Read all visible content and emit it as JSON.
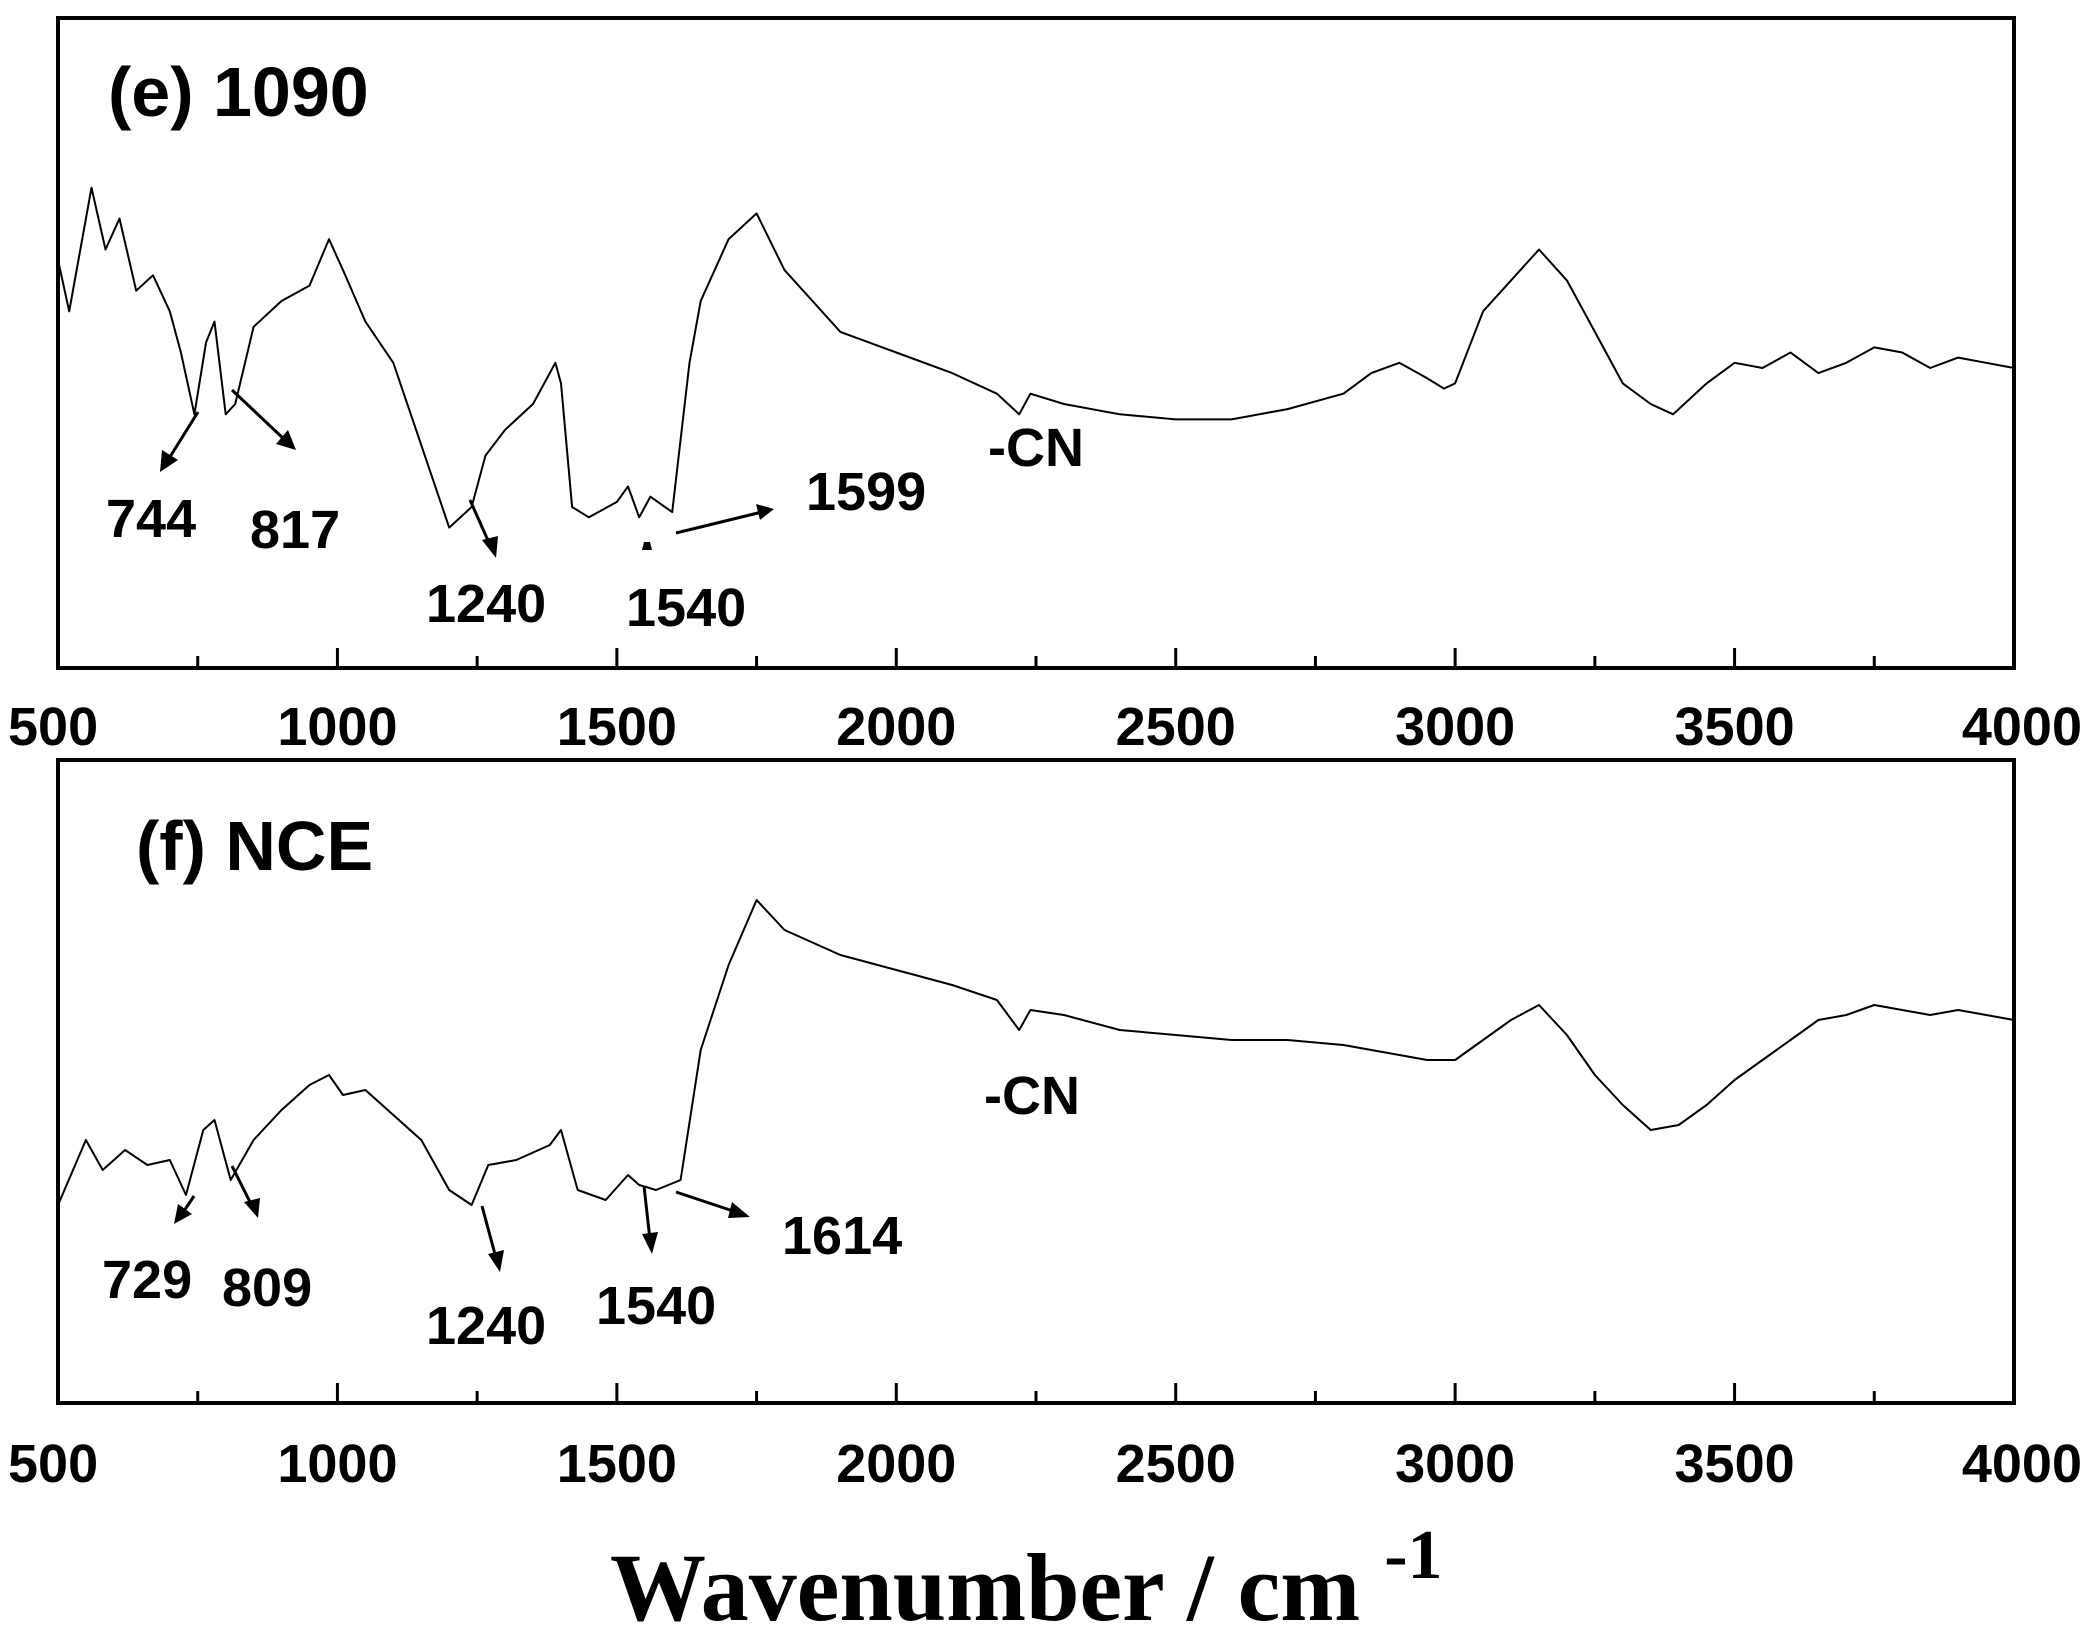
{
  "chart_data": [
    {
      "type": "line",
      "title": "(e) 1090",
      "xlabel": "Wavenumber / cm-1",
      "ylabel": "",
      "xlim": [
        500,
        4000
      ],
      "ylim": [
        0,
        100
      ],
      "xticks": [
        500,
        1000,
        1500,
        2000,
        2500,
        3000,
        3500,
        4000
      ],
      "x": [
        500,
        520,
        560,
        585,
        610,
        640,
        670,
        700,
        720,
        744,
        765,
        780,
        800,
        817,
        850,
        900,
        950,
        985,
        1010,
        1050,
        1100,
        1150,
        1200,
        1240,
        1265,
        1300,
        1350,
        1390,
        1400,
        1420,
        1450,
        1500,
        1520,
        1540,
        1560,
        1599,
        1630,
        1650,
        1700,
        1750,
        1800,
        1850,
        1900,
        2000,
        2100,
        2180,
        2220,
        2240,
        2300,
        2400,
        2500,
        2600,
        2700,
        2800,
        2850,
        2900,
        2950,
        2980,
        3000,
        3050,
        3100,
        3150,
        3200,
        3250,
        3300,
        3350,
        3390,
        3450,
        3500,
        3550,
        3600,
        3650,
        3700,
        3750,
        3800,
        3850,
        3900,
        3950,
        4000
      ],
      "y": [
        68,
        58,
        82,
        70,
        76,
        62,
        65,
        58,
        50,
        38,
        52,
        56,
        38,
        40,
        55,
        60,
        63,
        72,
        66,
        56,
        48,
        32,
        16,
        20,
        30,
        35,
        40,
        48,
        44,
        20,
        18,
        21,
        24,
        18,
        22,
        19,
        48,
        60,
        72,
        77,
        66,
        60,
        54,
        50,
        46,
        42,
        38,
        42,
        40,
        38,
        37,
        37,
        39,
        42,
        46,
        48,
        45,
        43,
        44,
        58,
        64,
        70,
        64,
        54,
        44,
        40,
        38,
        44,
        48,
        47,
        50,
        46,
        48,
        51,
        50,
        47,
        49,
        48,
        47
      ],
      "annotations": [
        {
          "label": "744",
          "x": 744
        },
        {
          "label": "817",
          "x": 817
        },
        {
          "label": "1240",
          "x": 1240
        },
        {
          "label": "1540",
          "x": 1540
        },
        {
          "label": "1599",
          "x": 1599
        },
        {
          "label": "-CN",
          "x": 2220
        }
      ]
    },
    {
      "type": "line",
      "title": "(f) NCE",
      "xlabel": "Wavenumber / cm-1",
      "ylabel": "",
      "xlim": [
        500,
        4000
      ],
      "ylim": [
        0,
        100
      ],
      "xticks": [
        500,
        1000,
        1500,
        2000,
        2500,
        3000,
        3500,
        4000
      ],
      "x": [
        500,
        550,
        580,
        620,
        660,
        700,
        729,
        760,
        780,
        809,
        850,
        900,
        950,
        985,
        1010,
        1050,
        1100,
        1150,
        1200,
        1240,
        1270,
        1320,
        1380,
        1400,
        1430,
        1480,
        1520,
        1540,
        1570,
        1614,
        1650,
        1700,
        1750,
        1800,
        1900,
        2000,
        2100,
        2180,
        2220,
        2240,
        2300,
        2400,
        2500,
        2600,
        2700,
        2800,
        2900,
        2950,
        3000,
        3050,
        3100,
        3150,
        3200,
        3250,
        3300,
        3350,
        3400,
        3450,
        3500,
        3550,
        3600,
        3650,
        3700,
        3750,
        3800,
        3850,
        3900,
        3950,
        4000
      ],
      "y": [
        27,
        40,
        34,
        38,
        35,
        36,
        29,
        42,
        44,
        32,
        40,
        46,
        51,
        53,
        49,
        50,
        45,
        40,
        30,
        27,
        35,
        36,
        39,
        42,
        30,
        28,
        33,
        31,
        30,
        32,
        58,
        75,
        88,
        82,
        77,
        74,
        71,
        68,
        62,
        66,
        65,
        62,
        61,
        60,
        60,
        59,
        57,
        56,
        56,
        60,
        64,
        67,
        61,
        53,
        47,
        42,
        43,
        47,
        52,
        56,
        60,
        64,
        65,
        67,
        66,
        65,
        66,
        65,
        64
      ],
      "annotations": [
        {
          "label": "729",
          "x": 729
        },
        {
          "label": "809",
          "x": 809
        },
        {
          "label": "1240",
          "x": 1240
        },
        {
          "label": "1540",
          "x": 1540
        },
        {
          "label": "1614",
          "x": 1614
        },
        {
          "label": "-CN",
          "x": 2220
        }
      ]
    }
  ],
  "axis_label": {
    "text": "Wavenumber / cm",
    "superscript": "-1"
  }
}
